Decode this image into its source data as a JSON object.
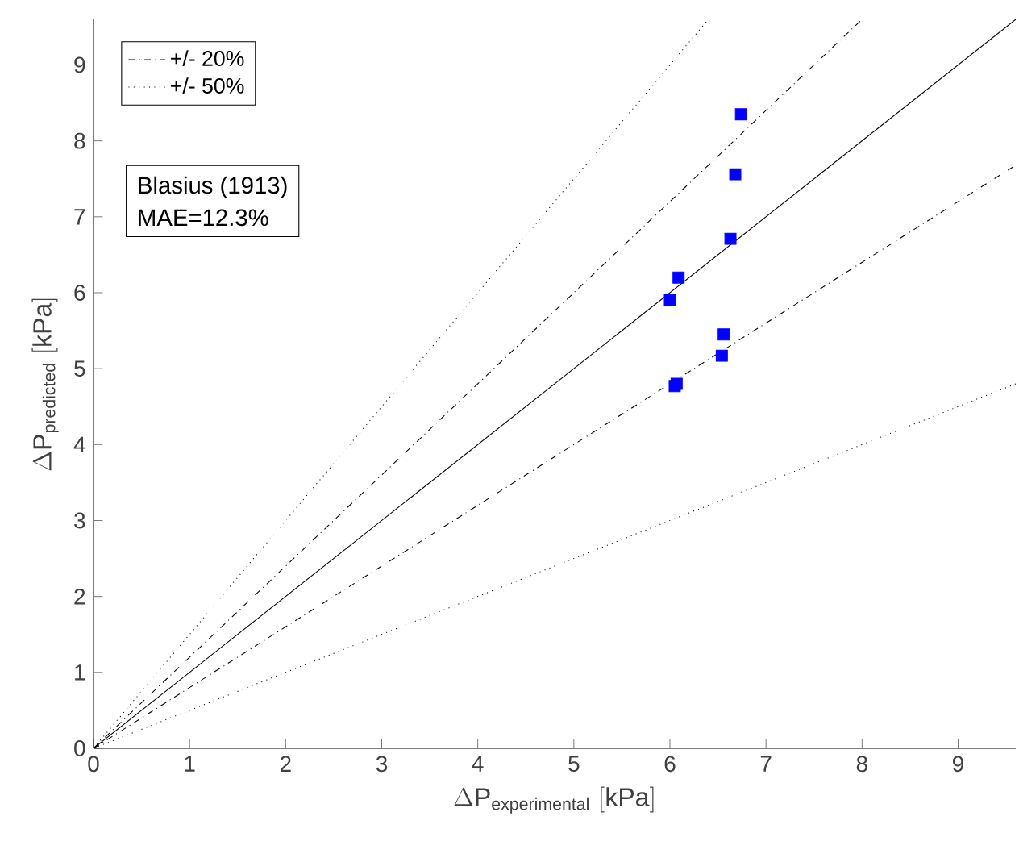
{
  "chart_data": {
    "type": "scatter",
    "xlabel": "\\Delta \\mathrm{P}_{\\mathrm{experimental}}\\ \\mathrm{[kPa]}",
    "ylabel": "\\Delta \\mathrm{P}_{\\mathrm{predicted}}\\ \\mathrm{[kPa]}",
    "xlim": [
      0,
      9.6
    ],
    "ylim": [
      0,
      9.6
    ],
    "xticks": [
      0,
      1,
      2,
      3,
      4,
      5,
      6,
      7,
      8,
      9
    ],
    "yticks": [
      0,
      1,
      2,
      3,
      4,
      5,
      6,
      7,
      8,
      9
    ],
    "legend": "top left",
    "grid": false,
    "annotations": [
      "Blasius (1913)",
      "MAE=12.3%"
    ],
    "series": [
      {
        "type": "line",
        "color": "#000000",
        "line_style": "solid",
        "marker": "none",
        "x": [
          0,
          9.6
        ],
        "values": [
          0,
          9.6
        ]
      },
      {
        "type": "line",
        "name": "+/- 20%",
        "color": "#000000",
        "line_style": "dashdot",
        "marker": "none",
        "x": [
          0,
          8
        ],
        "values": [
          0,
          9.6
        ]
      },
      {
        "type": "line",
        "color": "#000000",
        "line_style": "dashdot",
        "marker": "none",
        "x": [
          0,
          9.6
        ],
        "values": [
          0,
          7.68
        ]
      },
      {
        "type": "line",
        "name": "+/- 50%",
        "color": "#000000",
        "line_style": "dotted",
        "marker": "none",
        "x": [
          0,
          6.4
        ],
        "values": [
          0,
          9.6
        ]
      },
      {
        "type": "line",
        "color": "#000000",
        "line_style": "dotted",
        "marker": "none",
        "x": [
          0,
          9.6
        ],
        "values": [
          0,
          4.8
        ]
      },
      {
        "color": "#0000ff",
        "marker": "square",
        "x": [
          6.74,
          6.68,
          6.63,
          6.09,
          6.0,
          6.56,
          6.54,
          6.07,
          6.05
        ],
        "values": [
          8.35,
          7.56,
          6.71,
          6.2,
          5.9,
          5.45,
          5.17,
          4.8,
          4.77
        ]
      }
    ]
  }
}
